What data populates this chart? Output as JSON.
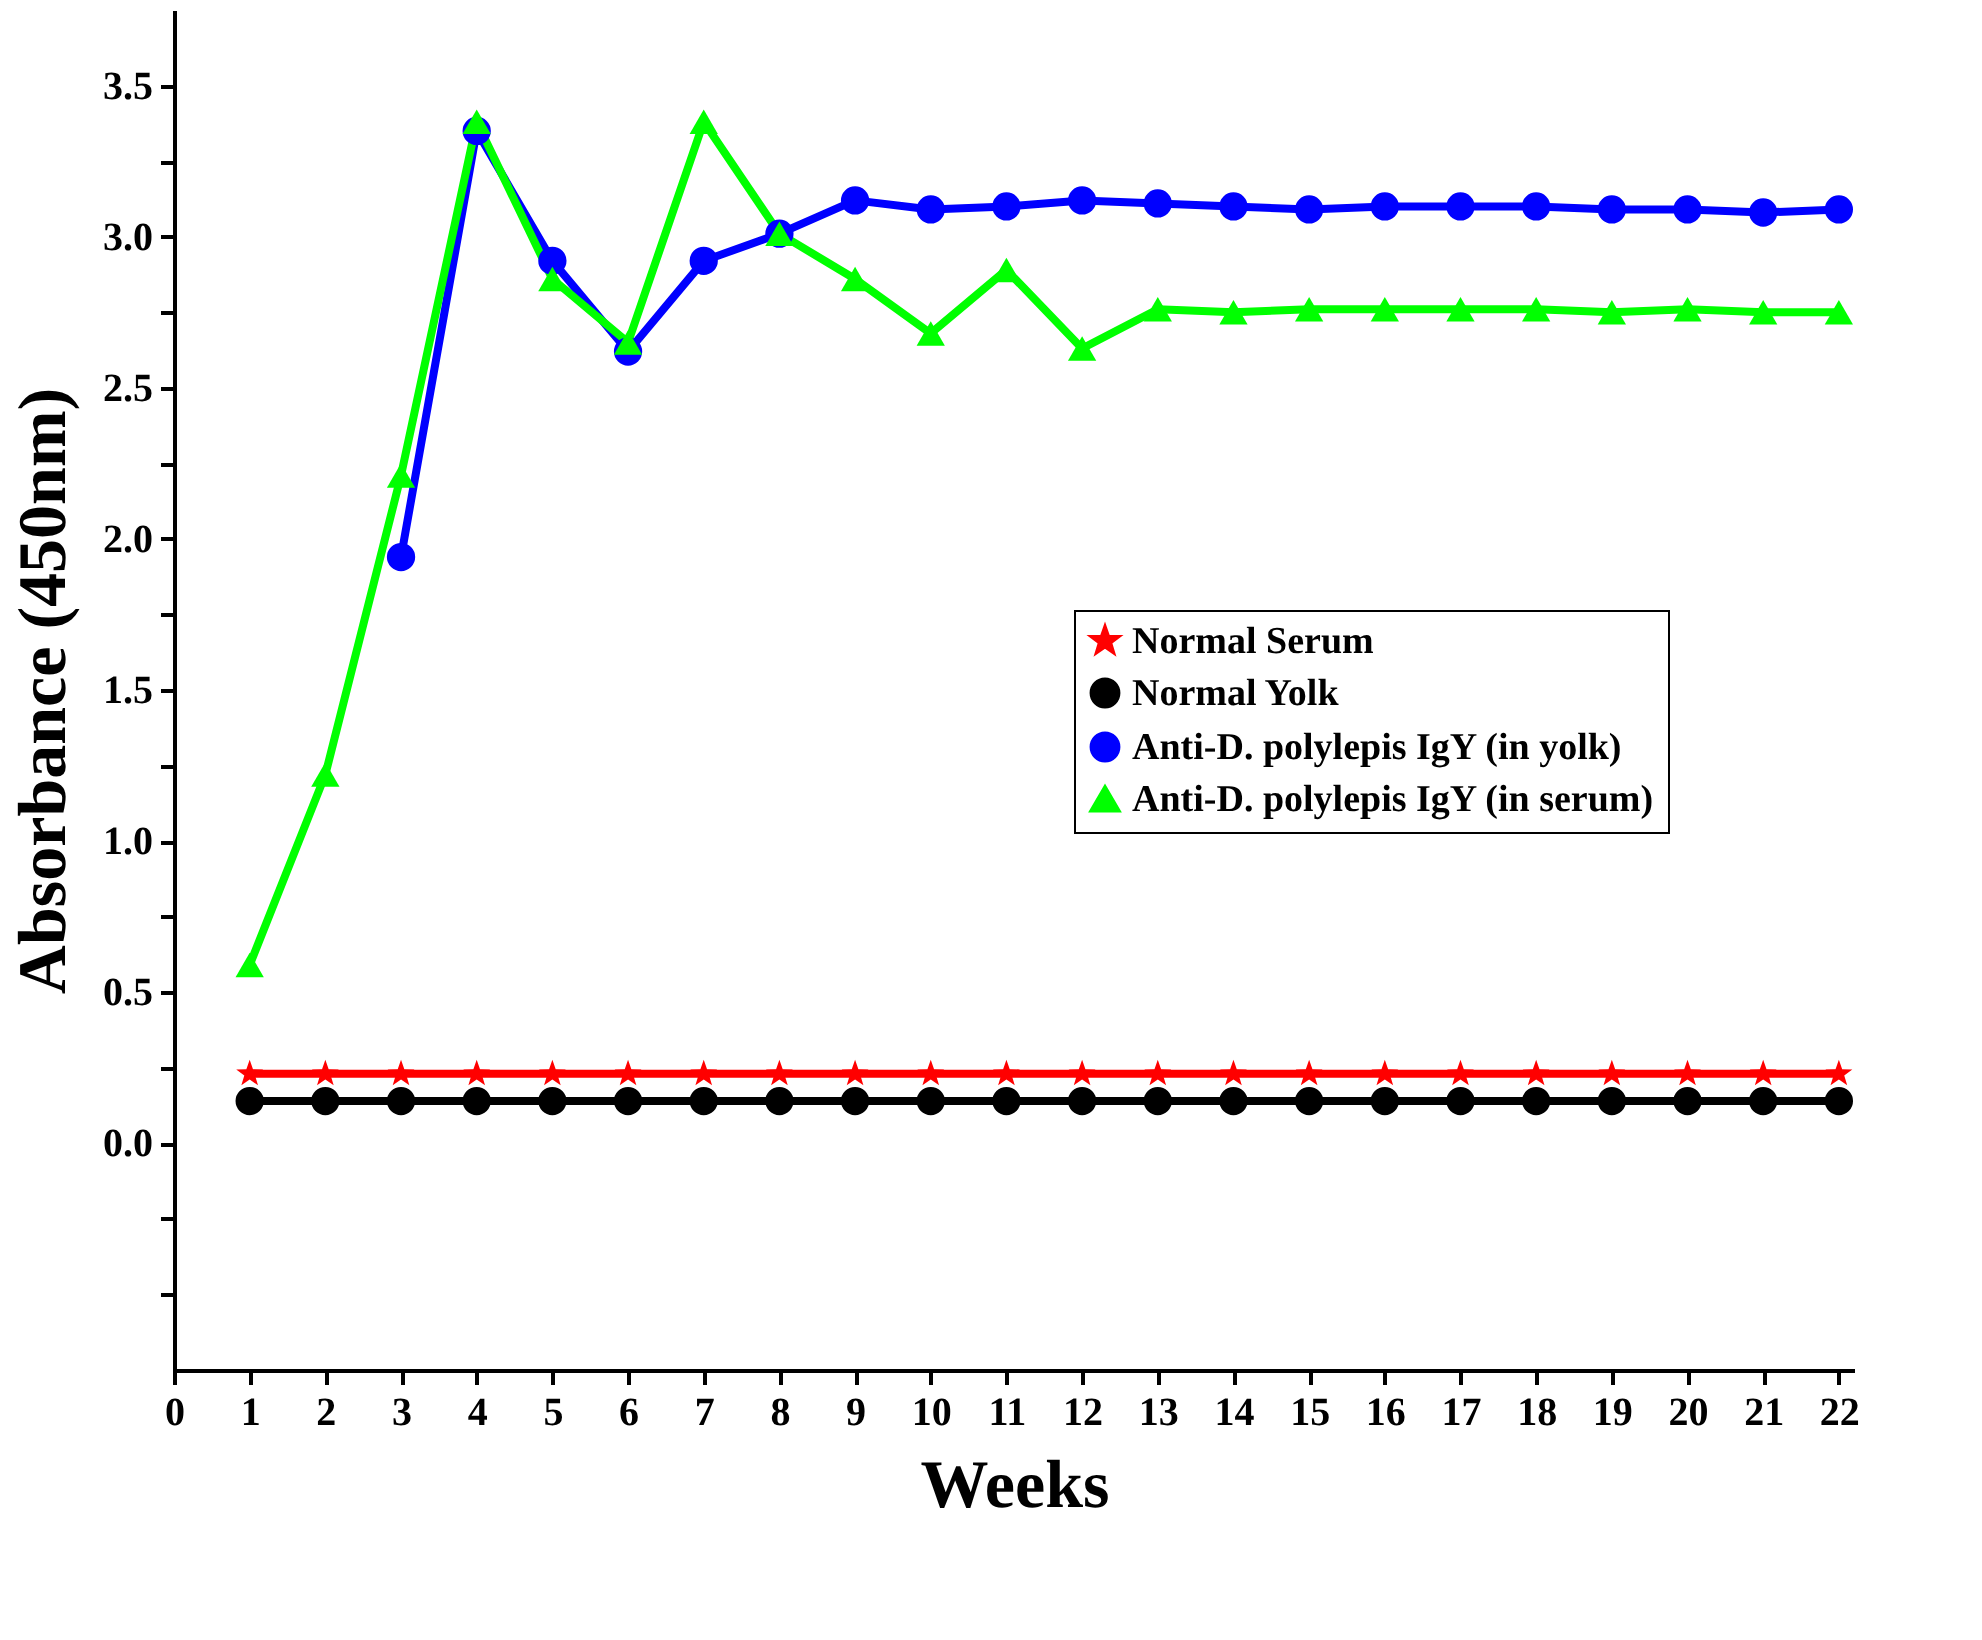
{
  "chart_data": {
    "type": "line",
    "xlabel": "Weeks",
    "ylabel": "Absorbance (450nm)",
    "x": [
      1,
      2,
      3,
      4,
      5,
      6,
      7,
      8,
      9,
      10,
      11,
      12,
      13,
      14,
      15,
      16,
      17,
      18,
      19,
      20,
      21,
      22
    ],
    "xlim": [
      0,
      22.2
    ],
    "xticks": [
      0,
      1,
      2,
      3,
      4,
      5,
      6,
      7,
      8,
      9,
      10,
      11,
      12,
      13,
      14,
      15,
      16,
      17,
      18,
      19,
      20,
      21,
      22
    ],
    "ylim": [
      -0.75,
      3.75
    ],
    "yticks": [
      {
        "value": -0.5,
        "label": null
      },
      {
        "value": -0.25,
        "label": null
      },
      {
        "value": 0,
        "label": "0.0"
      },
      {
        "value": 0.25,
        "label": null
      },
      0.5,
      {
        "value": 0.75,
        "label": null
      },
      {
        "value": 1,
        "label": "1.0"
      },
      {
        "value": 1.25,
        "label": null
      },
      1.5,
      {
        "value": 1.75,
        "label": null
      },
      {
        "value": 2,
        "label": "2.0"
      },
      {
        "value": 2.25,
        "label": null
      },
      2.5,
      {
        "value": 2.75,
        "label": null
      },
      {
        "value": 3,
        "label": "3.0"
      },
      {
        "value": 3.25,
        "label": null
      },
      3.5
    ],
    "grid": false,
    "legend": "right",
    "line_style": "solid",
    "series": [
      {
        "name": "Normal Serum",
        "color": "#ff0000",
        "marker": "star",
        "values": [
          0.23,
          0.23,
          0.23,
          0.23,
          0.23,
          0.23,
          0.23,
          0.23,
          0.23,
          0.23,
          0.23,
          0.23,
          0.23,
          0.23,
          0.23,
          0.23,
          0.23,
          0.23,
          0.23,
          0.23,
          0.23,
          0.23
        ]
      },
      {
        "name": "Normal Yolk",
        "color": "#000000",
        "marker": "circle",
        "values": [
          0.14,
          0.14,
          0.14,
          0.14,
          0.14,
          0.14,
          0.14,
          0.14,
          0.14,
          0.14,
          0.14,
          0.14,
          0.14,
          0.14,
          0.14,
          0.14,
          0.14,
          0.14,
          0.14,
          0.14,
          0.14,
          0.14
        ]
      },
      {
        "name": "Anti-D. polylepis IgY (in yolk)",
        "color": "#0000ff",
        "marker": "circle",
        "values": [
          null,
          null,
          1.94,
          3.35,
          2.92,
          2.62,
          2.92,
          3.01,
          3.12,
          3.09,
          3.1,
          3.12,
          3.11,
          3.1,
          3.09,
          3.1,
          3.1,
          3.1,
          3.09,
          3.09,
          3.08,
          3.09
        ]
      },
      {
        "name": "Anti-D. polylepis IgY (in serum)",
        "color": "#00ff00",
        "marker": "triangle",
        "values": [
          0.59,
          1.22,
          2.21,
          3.38,
          2.86,
          2.65,
          3.38,
          3.01,
          2.86,
          2.68,
          2.89,
          2.63,
          2.76,
          2.75,
          2.76,
          2.76,
          2.76,
          2.76,
          2.75,
          2.76,
          2.75,
          2.75
        ]
      }
    ]
  }
}
